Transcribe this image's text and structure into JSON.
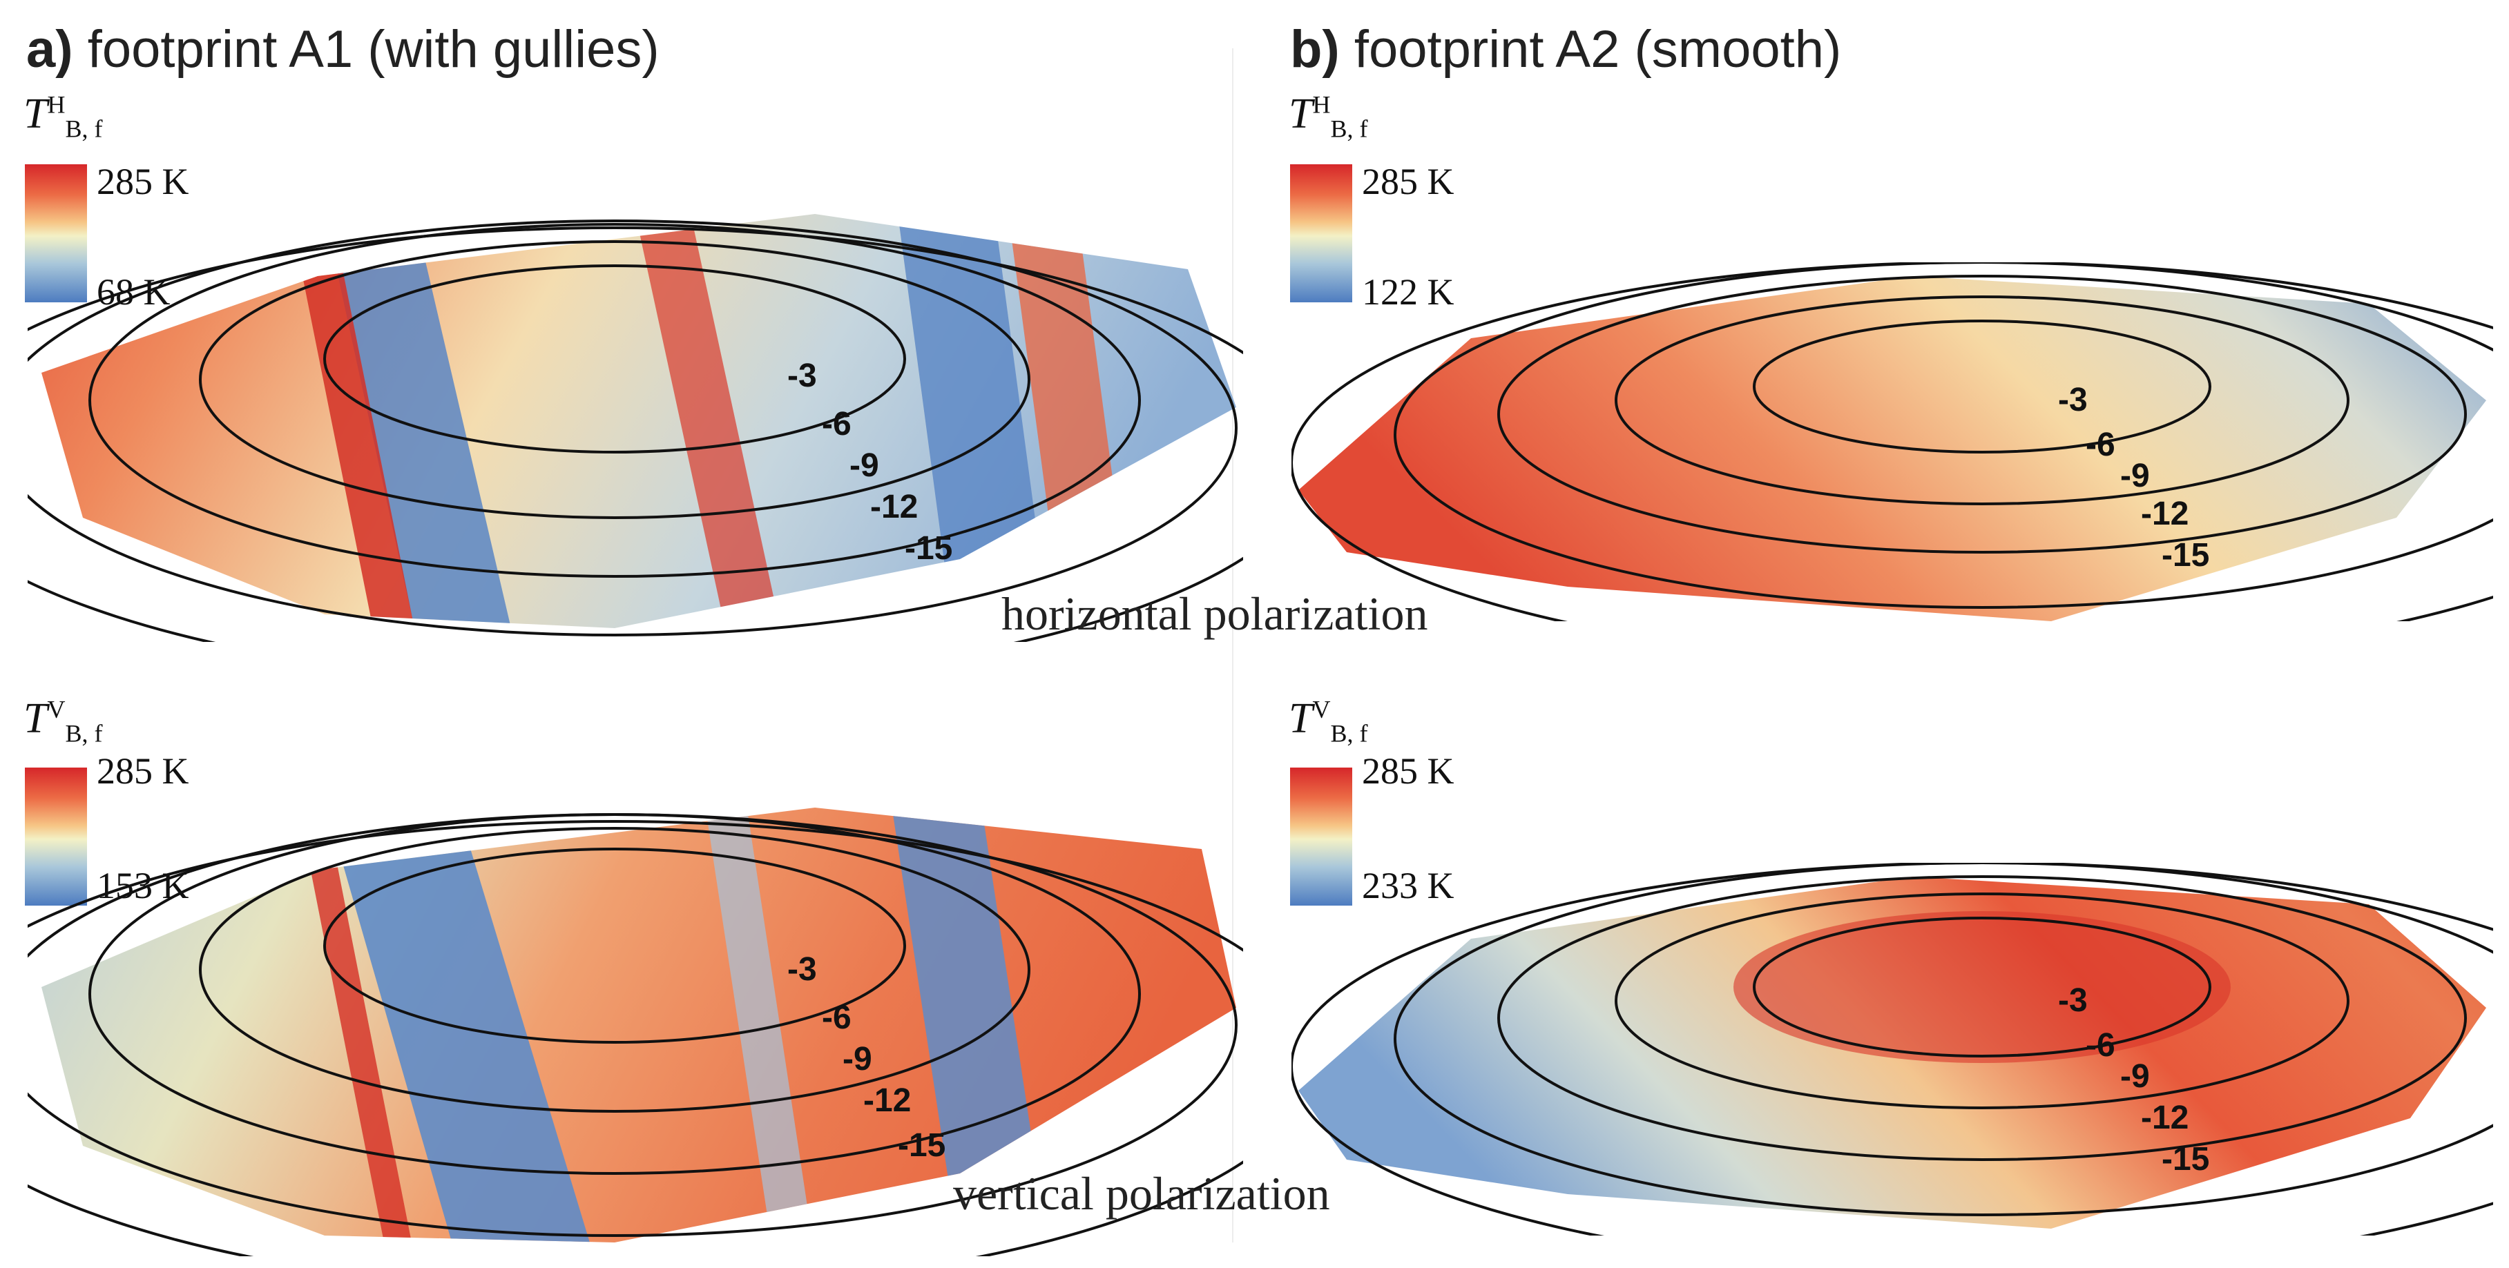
{
  "panels": {
    "a": {
      "letter": "a)",
      "title": "footprint A1 (with gullies)"
    },
    "b": {
      "letter": "b)",
      "title": "footprint A2 (smooth)"
    }
  },
  "polarization_labels": {
    "horizontal": "horizontal polarization",
    "vertical": "vertical polarization"
  },
  "colorbars": {
    "a_h": {
      "symbol": "T",
      "sup": "H",
      "sub": "B, f",
      "max": "285 K",
      "min": "68 K"
    },
    "b_h": {
      "symbol": "T",
      "sup": "H",
      "sub": "B, f",
      "max": "285 K",
      "min": "122 K"
    },
    "a_v": {
      "symbol": "T",
      "sup": "V",
      "sub": "B, f",
      "max": "285 K",
      "min": "153 K"
    },
    "b_v": {
      "symbol": "T",
      "sup": "V",
      "sub": "B, f",
      "max": "285 K",
      "min": "233 K"
    }
  },
  "contour_labels": [
    "-3",
    "-6",
    "-9",
    "-12",
    "-15"
  ],
  "colors": {
    "warm": "#e14a36",
    "mid": "#f2e8b6",
    "cold": "#5b86c4",
    "contour": "#111111"
  }
}
